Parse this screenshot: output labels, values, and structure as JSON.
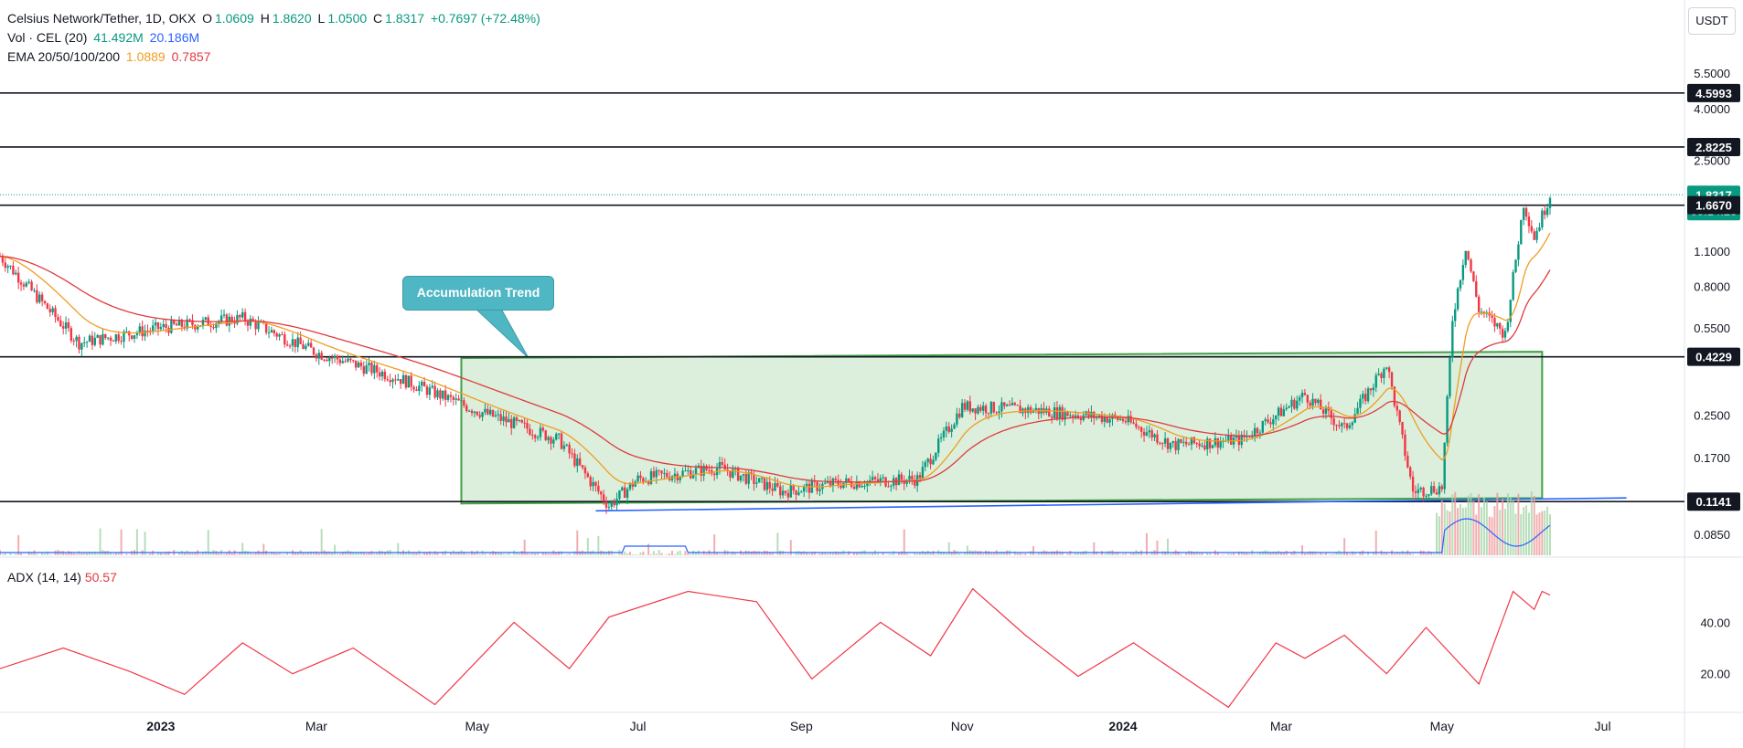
{
  "header": {
    "symbol": "Celsius Network/Tether, 1D, OKX",
    "ohlc": {
      "o_label": "O",
      "o": "1.0609",
      "h_label": "H",
      "h": "1.8620",
      "l_label": "L",
      "l": "1.0500",
      "c_label": "C",
      "c": "1.8317",
      "change": "+0.7697 (+72.48%)"
    },
    "vol_label": "Vol · CEL (20)",
    "vol_value": "41.492M",
    "vol_ma": "20.186M",
    "ema_label": "EMA 20/50/100/200",
    "ema_a": "1.0889",
    "ema_b": "0.7857",
    "adx_label": "ADX (14, 14)",
    "adx_value": "50.57",
    "currency_button": "USDT"
  },
  "annotation": {
    "text": "Accumulation Trend"
  },
  "colors": {
    "up": "#089981",
    "down": "#f23645",
    "ema_fast": "#f29c1f",
    "ema_slow": "#e03a3e",
    "volume_ma": "#2962ff",
    "adx": "#f23645",
    "box_fill": "#c8e6c9",
    "box_stroke": "#43a047",
    "callout": "#4fb7c4",
    "support_line": "#2962ff"
  },
  "chart_data": [
    {
      "type": "candlestick",
      "title": "Celsius Network/Tether, 1D, OKX",
      "y_scale": "log",
      "y_ticks": [
        "5.5000",
        "4.0000",
        "2.5000",
        "1.1000",
        "0.8000",
        "0.5500",
        "0.2500",
        "0.1700",
        "0.0850"
      ],
      "x_ticks": [
        "2023",
        "Mar",
        "May",
        "Jul",
        "Sep",
        "Nov",
        "2024",
        "Mar",
        "May",
        "Jul"
      ],
      "x_range": [
        "2022-11-01",
        "2024-08-01"
      ],
      "y_range": [
        0.075,
        6.5
      ],
      "horizontal_levels": [
        4.5993,
        2.8225,
        1.667,
        0.4229,
        0.1141
      ],
      "price_labels": [
        {
          "value": "4.5993",
          "kind": "level"
        },
        {
          "value": "2.8225",
          "kind": "level"
        },
        {
          "value": "1.8317",
          "kind": "last",
          "countdown": "08:14:23"
        },
        {
          "value": "1.6670",
          "kind": "level"
        },
        {
          "value": "0.4229",
          "kind": "level"
        },
        {
          "value": "0.1141",
          "kind": "level"
        }
      ],
      "last_price": 1.8317,
      "key_points": [
        {
          "date": "2022-11-01",
          "close": 1.05
        },
        {
          "date": "2022-12-01",
          "close": 0.48
        },
        {
          "date": "2023-01-01",
          "close": 0.55
        },
        {
          "date": "2023-02-01",
          "close": 0.6
        },
        {
          "date": "2023-03-01",
          "close": 0.44
        },
        {
          "date": "2023-04-01",
          "close": 0.35
        },
        {
          "date": "2023-05-01",
          "close": 0.26
        },
        {
          "date": "2023-06-01",
          "close": 0.2
        },
        {
          "date": "2023-06-20",
          "close": 0.11
        },
        {
          "date": "2023-07-01",
          "close": 0.14
        },
        {
          "date": "2023-08-01",
          "close": 0.155
        },
        {
          "date": "2023-08-25",
          "close": 0.125
        },
        {
          "date": "2023-09-15",
          "close": 0.135
        },
        {
          "date": "2023-10-15",
          "close": 0.14
        },
        {
          "date": "2023-11-01",
          "close": 0.27
        },
        {
          "date": "2023-12-01",
          "close": 0.26
        },
        {
          "date": "2024-01-01",
          "close": 0.24
        },
        {
          "date": "2024-01-20",
          "close": 0.19
        },
        {
          "date": "2024-02-15",
          "close": 0.2
        },
        {
          "date": "2024-03-10",
          "close": 0.3
        },
        {
          "date": "2024-03-25",
          "close": 0.22
        },
        {
          "date": "2024-04-10",
          "close": 0.4
        },
        {
          "date": "2024-04-20",
          "close": 0.125
        },
        {
          "date": "2024-05-01",
          "close": 0.13
        },
        {
          "date": "2024-05-05",
          "close": 0.6
        },
        {
          "date": "2024-05-10",
          "close": 1.15
        },
        {
          "date": "2024-05-15",
          "close": 0.65
        },
        {
          "date": "2024-05-25",
          "close": 0.52
        },
        {
          "date": "2024-06-01",
          "close": 1.7
        },
        {
          "date": "2024-06-05",
          "close": 1.25
        },
        {
          "date": "2024-06-11",
          "close": 1.8317
        }
      ],
      "accumulation_box": {
        "start": "2023-04-25",
        "end": "2024-06-08",
        "top": 0.425,
        "bottom": 0.114
      },
      "support_trendline": {
        "start": "2023-06-15",
        "start_value": 0.105,
        "end": "2024-07-10",
        "end_value": 0.118
      }
    },
    {
      "type": "line",
      "title": "ADX (14, 14)",
      "y_ticks": [
        "40.00",
        "20.00"
      ],
      "y_range": [
        5,
        60
      ],
      "last_value": 50.57,
      "key_points": [
        {
          "date": "2022-11-01",
          "value": 22
        },
        {
          "date": "2022-11-25",
          "value": 30
        },
        {
          "date": "2022-12-20",
          "value": 21
        },
        {
          "date": "2023-01-10",
          "value": 12
        },
        {
          "date": "2023-02-01",
          "value": 32
        },
        {
          "date": "2023-02-20",
          "value": 20
        },
        {
          "date": "2023-03-15",
          "value": 30
        },
        {
          "date": "2023-04-15",
          "value": 8
        },
        {
          "date": "2023-05-15",
          "value": 40
        },
        {
          "date": "2023-06-05",
          "value": 22
        },
        {
          "date": "2023-06-20",
          "value": 42
        },
        {
          "date": "2023-07-20",
          "value": 52
        },
        {
          "date": "2023-08-15",
          "value": 48
        },
        {
          "date": "2023-09-05",
          "value": 18
        },
        {
          "date": "2023-10-01",
          "value": 40
        },
        {
          "date": "2023-10-20",
          "value": 27
        },
        {
          "date": "2023-11-05",
          "value": 53
        },
        {
          "date": "2023-11-25",
          "value": 35
        },
        {
          "date": "2023-12-15",
          "value": 19
        },
        {
          "date": "2024-01-05",
          "value": 32
        },
        {
          "date": "2024-02-10",
          "value": 7
        },
        {
          "date": "2024-02-28",
          "value": 32
        },
        {
          "date": "2024-03-10",
          "value": 26
        },
        {
          "date": "2024-03-25",
          "value": 35
        },
        {
          "date": "2024-04-10",
          "value": 20
        },
        {
          "date": "2024-04-25",
          "value": 38
        },
        {
          "date": "2024-05-15",
          "value": 16
        },
        {
          "date": "2024-05-28",
          "value": 52
        },
        {
          "date": "2024-06-05",
          "value": 45
        },
        {
          "date": "2024-06-08",
          "value": 52
        },
        {
          "date": "2024-06-11",
          "value": 50.57
        }
      ]
    }
  ]
}
